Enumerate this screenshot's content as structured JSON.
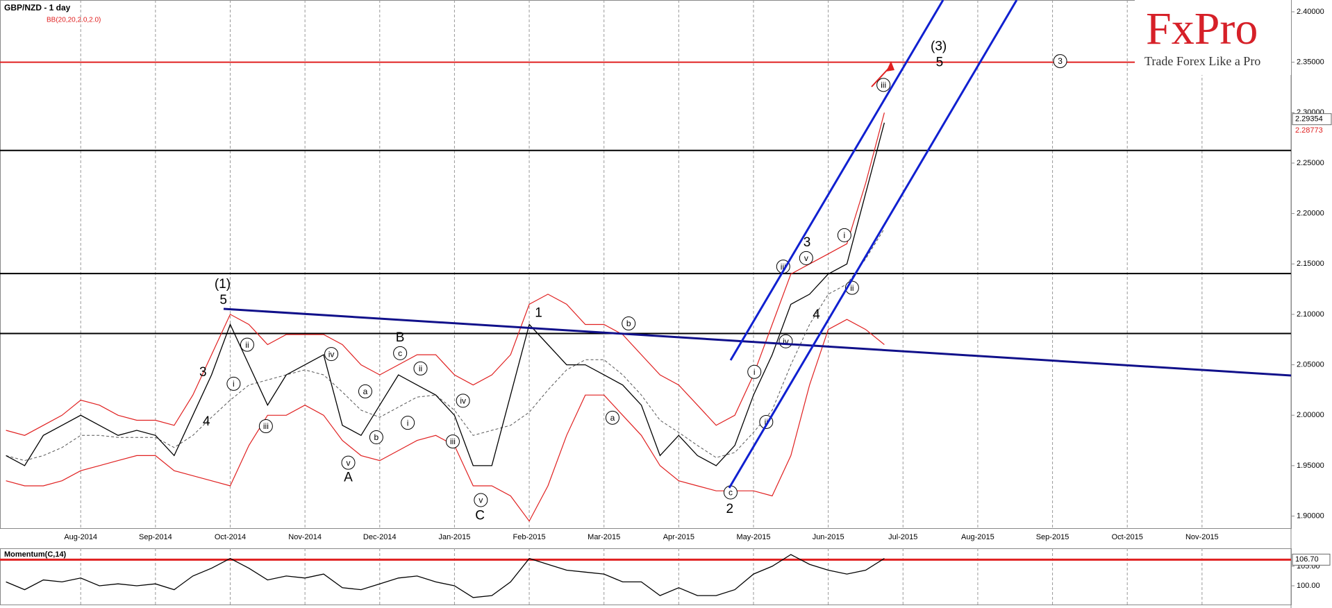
{
  "chart_data": [
    {
      "type": "line",
      "title": "GBP/NZD - 1 day",
      "categories": [
        null,
        null,
        null,
        null,
        "Aug-2014",
        null,
        null,
        null,
        "Sep-2014",
        null,
        null,
        null,
        "Oct-2014",
        null,
        null,
        null,
        "Nov-2014",
        null,
        null,
        null,
        "Dec-2014",
        null,
        null,
        null,
        "Jan-2015",
        null,
        null,
        null,
        "Feb-2015",
        null,
        null,
        null,
        "Mar-2015",
        null,
        null,
        null,
        "Apr-2015",
        null,
        null,
        null,
        "May-2015",
        null,
        null,
        null,
        "Jun-2015",
        null,
        null,
        null,
        "Jul-2015",
        null,
        null,
        null,
        "Aug-2015",
        null,
        null,
        null,
        "Sep-2015",
        null,
        null,
        null,
        "Oct-2015",
        null,
        null,
        null,
        "Nov-2015",
        null,
        null,
        null,
        null,
        null,
        null,
        null
      ],
      "values": [
        1.96,
        1.95,
        1.98,
        1.99,
        2.0,
        1.99,
        1.98,
        1.985,
        1.98,
        1.96,
        2.0,
        2.04,
        2.09,
        2.05,
        2.01,
        2.04,
        2.05,
        2.06,
        1.99,
        1.98,
        2.01,
        2.04,
        2.03,
        2.02,
        2.0,
        1.95,
        1.95,
        2.02,
        2.09,
        2.07,
        2.05,
        2.05,
        2.04,
        2.03,
        2.01,
        1.96,
        1.98,
        1.96,
        1.95,
        1.97,
        2.02,
        2.06,
        2.11,
        2.12,
        2.14,
        2.15,
        2.22,
        2.29,
        null,
        null,
        null,
        null,
        null,
        null,
        null,
        null,
        null,
        null,
        null,
        null,
        null,
        null,
        null,
        null,
        null,
        null,
        null,
        null,
        null,
        null,
        null,
        null
      ],
      "color": "#000000",
      "bollinger": {
        "label": "BB(20,20,2.0,2.0)",
        "color": "#e02020",
        "middle_color": "#555555",
        "upper": [
          1.985,
          1.98,
          1.99,
          2.0,
          2.015,
          2.01,
          2.0,
          1.995,
          1.995,
          1.99,
          2.02,
          2.06,
          2.1,
          2.09,
          2.07,
          2.08,
          2.08,
          2.08,
          2.07,
          2.05,
          2.04,
          2.05,
          2.06,
          2.06,
          2.04,
          2.03,
          2.04,
          2.06,
          2.11,
          2.12,
          2.11,
          2.09,
          2.09,
          2.08,
          2.06,
          2.04,
          2.03,
          2.01,
          1.99,
          2.0,
          2.04,
          2.09,
          2.14,
          2.15,
          2.16,
          2.17,
          2.23,
          2.3,
          null,
          null,
          null,
          null,
          null,
          null,
          null,
          null,
          null,
          null,
          null,
          null,
          null,
          null,
          null,
          null,
          null,
          null,
          null,
          null,
          null,
          null,
          null,
          null
        ],
        "middle": [
          1.96,
          1.955,
          1.96,
          1.968,
          1.98,
          1.98,
          1.978,
          1.978,
          1.978,
          1.968,
          1.98,
          1.998,
          2.015,
          2.03,
          2.035,
          2.04,
          2.045,
          2.04,
          2.023,
          2.005,
          1.998,
          2.008,
          2.018,
          2.02,
          2.005,
          1.98,
          1.985,
          1.99,
          2.003,
          2.025,
          2.045,
          2.055,
          2.055,
          2.04,
          2.02,
          1.995,
          1.983,
          1.97,
          1.958,
          1.963,
          1.983,
          2.005,
          2.05,
          2.09,
          2.12,
          2.13,
          2.155,
          2.185,
          null,
          null,
          null,
          null,
          null,
          null,
          null,
          null,
          null,
          null,
          null,
          null,
          null,
          null,
          null,
          null,
          null,
          null,
          null,
          null,
          null,
          null,
          null,
          null
        ],
        "lower": [
          1.935,
          1.93,
          1.93,
          1.935,
          1.945,
          1.95,
          1.955,
          1.96,
          1.96,
          1.945,
          1.94,
          1.935,
          1.93,
          1.97,
          2.0,
          2.0,
          2.01,
          2.0,
          1.975,
          1.96,
          1.955,
          1.965,
          1.975,
          1.98,
          1.97,
          1.93,
          1.93,
          1.92,
          1.895,
          1.93,
          1.98,
          2.02,
          2.02,
          2.0,
          1.98,
          1.95,
          1.935,
          1.93,
          1.925,
          1.925,
          1.925,
          1.92,
          1.96,
          2.03,
          2.085,
          2.095,
          2.085,
          2.07,
          null,
          null,
          null,
          null,
          null,
          null,
          null,
          null,
          null,
          null,
          null,
          null,
          null,
          null,
          null,
          null,
          null,
          null,
          null,
          null,
          null,
          null,
          null,
          null
        ]
      },
      "ylim": [
        1.888,
        2.4117
      ],
      "yticks": [
        {
          "value": 1.9,
          "label": "1.90000"
        },
        {
          "value": 1.95,
          "label": "1.95000"
        },
        {
          "value": 2.0,
          "label": "2.00000"
        },
        {
          "value": 2.05,
          "label": "2.05000"
        },
        {
          "value": 2.1,
          "label": "2.10000"
        },
        {
          "value": 2.15,
          "label": "2.15000"
        },
        {
          "value": 2.2,
          "label": "2.20000"
        },
        {
          "value": 2.25,
          "label": "2.25000"
        },
        {
          "value": 2.3,
          "label": "2.30000"
        },
        {
          "value": 2.35,
          "label": "2.35000"
        },
        {
          "value": 2.4,
          "label": "2.40000"
        }
      ],
      "levels": [
        {
          "value": 2.35,
          "color": "#e02020"
        },
        {
          "value": 2.2625,
          "color": "#000000"
        },
        {
          "value": 2.1405,
          "color": "#000000"
        },
        {
          "value": 2.081,
          "color": "#000000"
        }
      ],
      "price_labels": [
        2.29354,
        2.28773
      ],
      "wave_labels": [
        "(1)",
        "5",
        "3",
        "4",
        "B",
        "A",
        "C",
        "1",
        "2",
        "3",
        "4",
        "(3)",
        "5"
      ],
      "circled_labels": [
        "i",
        "ii",
        "iii",
        "iv",
        "v",
        "a",
        "b",
        "c",
        "i",
        "ii",
        "iv",
        "iii",
        "v",
        "a",
        "b",
        "c",
        "i",
        "ii",
        "iii",
        "iv",
        "v",
        "i",
        "ii",
        "iii",
        "3"
      ],
      "grid": true
    },
    {
      "type": "line",
      "title": "Momentum(C,14)",
      "values": [
        101,
        99,
        101.5,
        101,
        102,
        100,
        100.5,
        100,
        100.5,
        99,
        102.5,
        104.5,
        107,
        104.5,
        101.5,
        102.5,
        102,
        103,
        99.5,
        99,
        100.5,
        102,
        102.5,
        101,
        100,
        97,
        97.5,
        101,
        107,
        105.5,
        104,
        103.5,
        103,
        101,
        101,
        97.5,
        99.5,
        97.5,
        97.5,
        99,
        103,
        105,
        108,
        105.5,
        104,
        103,
        104,
        107,
        null,
        null,
        null,
        null,
        null,
        null,
        null,
        null,
        null,
        null,
        null,
        null,
        null,
        null,
        null,
        null,
        null,
        null,
        null,
        null,
        null,
        null,
        null,
        null
      ],
      "color": "#000000",
      "reference_line": {
        "value": 106.7,
        "label": "106.70",
        "color": "#e02020"
      },
      "ylim": [
        95.2,
        109.6
      ],
      "yticks": [
        {
          "value": 100,
          "label": "100.00"
        },
        {
          "value": 105,
          "label": "105.00"
        }
      ]
    }
  ],
  "logo": {
    "title": "FxPro",
    "subtitle": "Trade Forex Like a Pro"
  }
}
